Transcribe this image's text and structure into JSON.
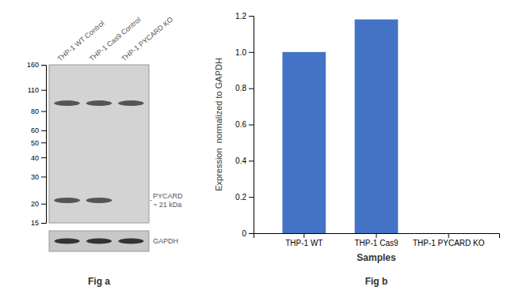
{
  "chart_data": [
    {
      "type": "blot",
      "title": "Fig a",
      "categories": [
        "THP-1 WT Control",
        "THP-1 Cas9 Control",
        "THP-1 PYCARD KO"
      ],
      "log": "y",
      "ylim": [
        15,
        160
      ],
      "yticks": [
        160,
        110,
        80,
        60,
        50,
        40,
        30,
        20,
        15
      ],
      "band_kda": [
        [
          90,
          21
        ],
        [
          90,
          21
        ],
        [
          90
        ]
      ],
      "annotations": [
        {
          "text": "PYCARD\n~ 21 kDa",
          "kda": 21
        },
        {
          "text": "GAPDH"
        }
      ]
    },
    {
      "type": "bar",
      "title": "Fig b",
      "categories": [
        "THP-1 WT",
        "THP-1 Cas9",
        "THP-1 PYCARD KO"
      ],
      "values": [
        1.0,
        1.18,
        0.0
      ],
      "color": "#4472c4",
      "xlabel": "Samples",
      "ylabel": "Expression  normalized to GAPDH",
      "ylim": [
        0,
        1.2
      ],
      "yticks": [
        0,
        0.2,
        0.4,
        0.6,
        0.8,
        {
          "value": 1.0,
          "label": "1.0"
        },
        1.2
      ]
    }
  ]
}
